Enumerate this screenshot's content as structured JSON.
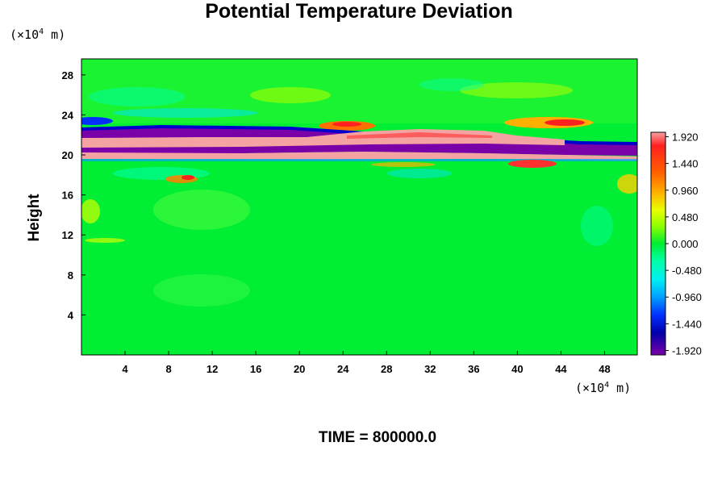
{
  "chart_data": {
    "type": "heatmap",
    "title": "Potential Temperature Deviation",
    "xlabel": "",
    "ylabel": "Height",
    "x_unit": "m",
    "y_unit": "m",
    "unit_prefix": "(×10",
    "unit_exp": "4",
    "unit_suffix": " m)",
    "x_ticks": [
      4,
      8,
      12,
      16,
      20,
      24,
      28,
      32,
      36,
      40,
      44,
      48
    ],
    "y_ticks": [
      4,
      8,
      12,
      16,
      20,
      24,
      28
    ],
    "xlim": [
      0,
      51
    ],
    "ylim": [
      0,
      29.6
    ],
    "colorbar": {
      "min": -2.0,
      "max": 2.0,
      "tick_labels": [
        "1.920",
        "1.440",
        "0.960",
        "0.480",
        "0.000",
        "-0.480",
        "-0.960",
        "-1.440",
        "-1.920"
      ]
    },
    "colors": {
      "background": "#00ee33",
      "positive_max": "#f5a2a2",
      "negative_max": "#7a00a8"
    },
    "time_label": "TIME = 800000.0"
  }
}
